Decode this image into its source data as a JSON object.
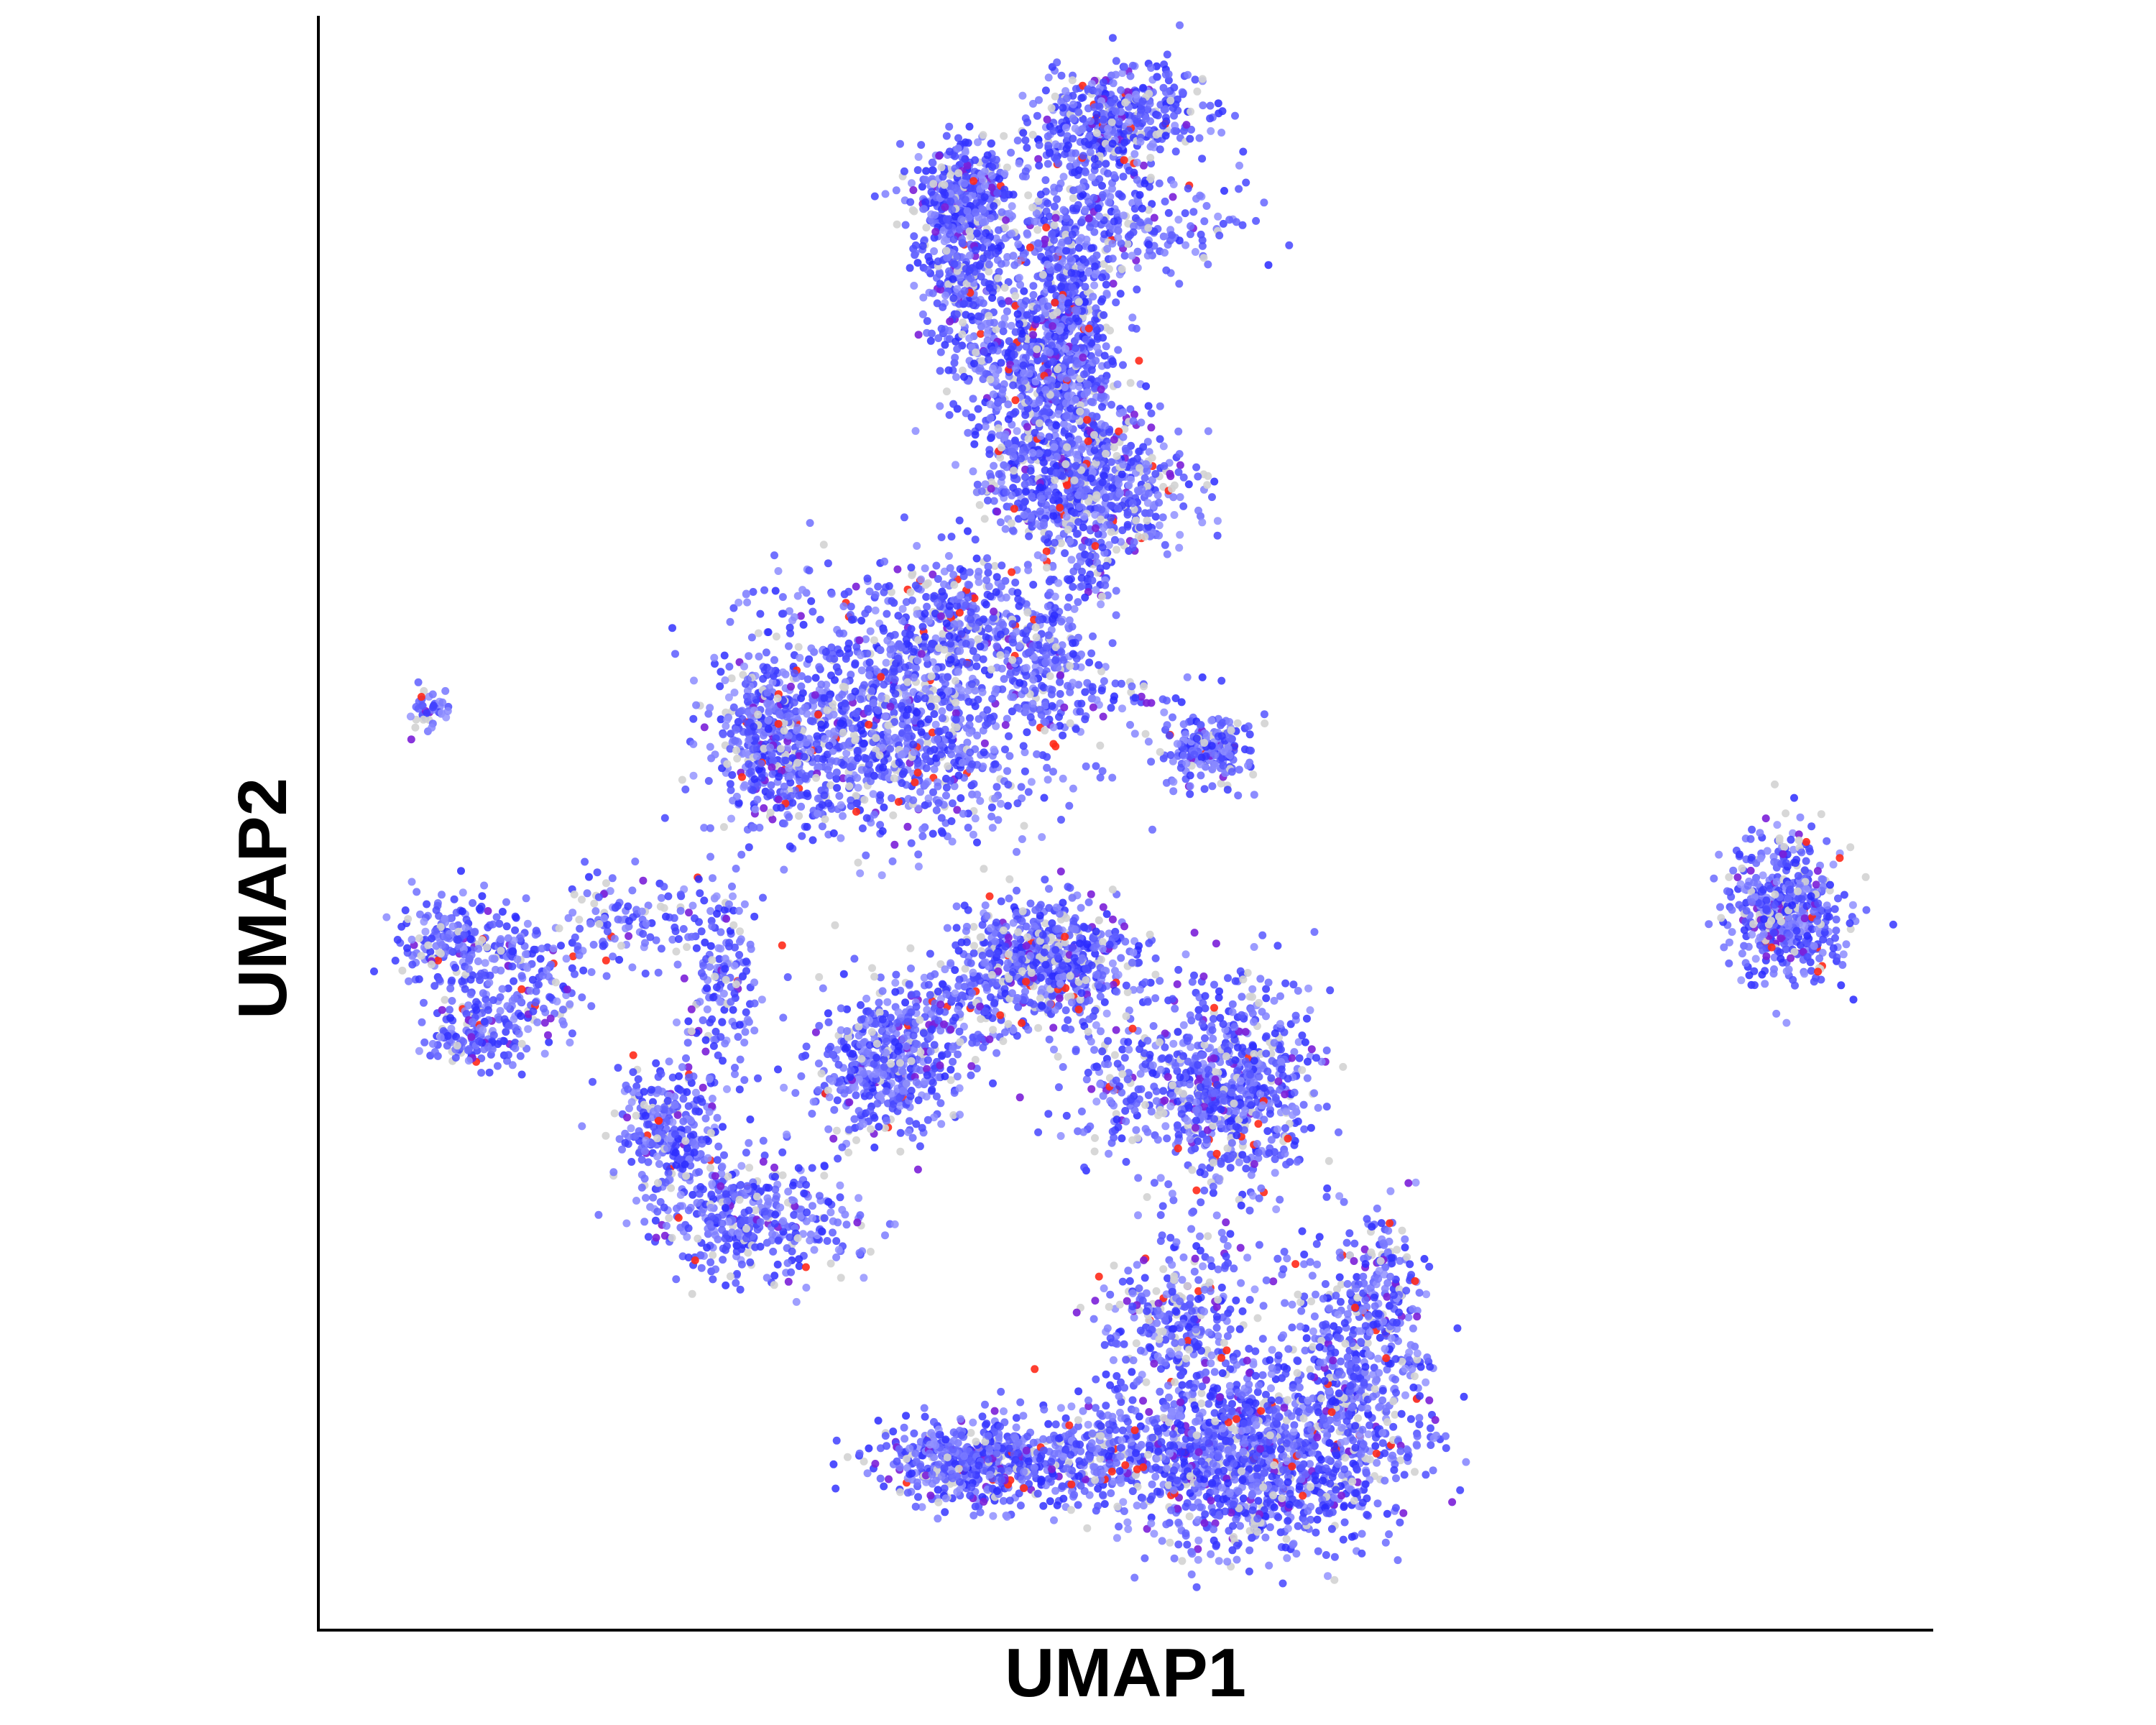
{
  "chart_data": {
    "type": "scatter",
    "title": "",
    "xlabel": "UMAP1",
    "ylabel": "UMAP2",
    "xlim": [
      0,
      100
    ],
    "ylim": [
      0,
      100
    ],
    "grid": false,
    "legend": "none",
    "color_scale": {
      "no_expression": "#d3d3d3",
      "low": "#0000ff",
      "mid": "#7b1fd8",
      "high": "#ff2a1a"
    },
    "clusters": [
      {
        "name": "",
        "center": [
          46.0,
          82.0
        ],
        "spread": [
          2.2,
          5.0
        ],
        "count": 600
      },
      {
        "name": "",
        "center": [
          46.5,
          75.0
        ],
        "spread": [
          2.8,
          4.0
        ],
        "count": 350
      },
      {
        "name": "",
        "center": [
          50.0,
          87.0
        ],
        "spread": [
          5.0,
          2.0
        ],
        "count": 200
      },
      {
        "name": "",
        "center": [
          47.5,
          92.0
        ],
        "spread": [
          3.0,
          2.0
        ],
        "count": 150
      },
      {
        "name": "",
        "center": [
          40.0,
          89.0
        ],
        "spread": [
          2.2,
          2.0
        ],
        "count": 350
      },
      {
        "name": "",
        "center": [
          40.0,
          84.0
        ],
        "spread": [
          2.0,
          3.5
        ],
        "count": 300
      },
      {
        "name": "",
        "center": [
          42.0,
          78.0
        ],
        "spread": [
          2.0,
          3.0
        ],
        "count": 150
      },
      {
        "name": "",
        "center": [
          43.0,
          72.0
        ],
        "spread": [
          1.4,
          2.5
        ],
        "count": 80
      },
      {
        "name": "",
        "center": [
          48.0,
          70.5
        ],
        "spread": [
          4.0,
          2.6
        ],
        "count": 550
      },
      {
        "name": "",
        "center": [
          48.0,
          66.0
        ],
        "spread": [
          0.8,
          2.0
        ],
        "count": 50
      },
      {
        "name": "",
        "center": [
          50.0,
          94.0
        ],
        "spread": [
          3.0,
          2.0
        ],
        "count": 350
      },
      {
        "name": "",
        "center": [
          35.0,
          58.0
        ],
        "spread": [
          6.0,
          5.0
        ],
        "count": 900
      },
      {
        "name": "",
        "center": [
          36.0,
          53.0
        ],
        "spread": [
          7.0,
          3.0
        ],
        "count": 350
      },
      {
        "name": "",
        "center": [
          40.0,
          63.0
        ],
        "spread": [
          2.5,
          2.5
        ],
        "count": 200
      },
      {
        "name": "",
        "center": [
          45.0,
          60.0
        ],
        "spread": [
          2.0,
          3.0
        ],
        "count": 220
      },
      {
        "name": "",
        "center": [
          28.0,
          55.0
        ],
        "spread": [
          2.0,
          3.0
        ],
        "count": 320
      },
      {
        "name": "",
        "center": [
          50.0,
          58.0
        ],
        "spread": [
          3.0,
          1.0
        ],
        "count": 40
      },
      {
        "name": "",
        "center": [
          7.0,
          57.0
        ],
        "spread": [
          0.8,
          0.8
        ],
        "count": 40
      },
      {
        "name": "",
        "center": [
          55.0,
          54.5
        ],
        "spread": [
          2.0,
          1.5
        ],
        "count": 200
      },
      {
        "name": "",
        "center": [
          91.0,
          44.5
        ],
        "spread": [
          2.3,
          2.8
        ],
        "count": 500
      },
      {
        "name": "",
        "center": [
          8.5,
          42.5
        ],
        "spread": [
          2.5,
          2.0
        ],
        "count": 200
      },
      {
        "name": "",
        "center": [
          13.0,
          40.0
        ],
        "spread": [
          2.5,
          2.5
        ],
        "count": 150
      },
      {
        "name": "",
        "center": [
          9.5,
          37.0
        ],
        "spread": [
          2.0,
          1.5
        ],
        "count": 150
      },
      {
        "name": "",
        "center": [
          19.0,
          44.0
        ],
        "spread": [
          3.5,
          2.0
        ],
        "count": 120
      },
      {
        "name": "",
        "center": [
          25.0,
          41.0
        ],
        "spread": [
          1.5,
          4.0
        ],
        "count": 160
      },
      {
        "name": "",
        "center": [
          22.0,
          31.0
        ],
        "spread": [
          2.0,
          3.0
        ],
        "count": 300
      },
      {
        "name": "",
        "center": [
          27.0,
          25.5
        ],
        "spread": [
          4.0,
          2.5
        ],
        "count": 400
      },
      {
        "name": "",
        "center": [
          35.0,
          35.0
        ],
        "spread": [
          3.0,
          3.0
        ],
        "count": 450
      },
      {
        "name": "",
        "center": [
          39.5,
          38.5
        ],
        "spread": [
          3.5,
          2.0
        ],
        "count": 150
      },
      {
        "name": "",
        "center": [
          45.0,
          41.5
        ],
        "spread": [
          3.5,
          2.5
        ],
        "count": 650
      },
      {
        "name": "",
        "center": [
          56.5,
          33.5
        ],
        "spread": [
          3.5,
          4.5
        ],
        "count": 700
      },
      {
        "name": "",
        "center": [
          50.0,
          34.0
        ],
        "spread": [
          3.0,
          3.0
        ],
        "count": 150
      },
      {
        "name": "",
        "center": [
          57.5,
          10.5
        ],
        "spread": [
          5.5,
          3.5
        ],
        "count": 1100
      },
      {
        "name": "",
        "center": [
          53.5,
          19.0
        ],
        "spread": [
          3.5,
          4.0
        ],
        "count": 350
      },
      {
        "name": "",
        "center": [
          64.0,
          16.0
        ],
        "spread": [
          3.0,
          5.0
        ],
        "count": 500
      },
      {
        "name": "",
        "center": [
          41.0,
          10.5
        ],
        "spread": [
          4.5,
          1.8
        ],
        "count": 600
      },
      {
        "name": "",
        "center": [
          49.0,
          11.0
        ],
        "spread": [
          2.5,
          2.0
        ],
        "count": 200
      },
      {
        "name": "",
        "center": [
          66.0,
          22.0
        ],
        "spread": [
          1.2,
          3.0
        ],
        "count": 120
      }
    ]
  }
}
